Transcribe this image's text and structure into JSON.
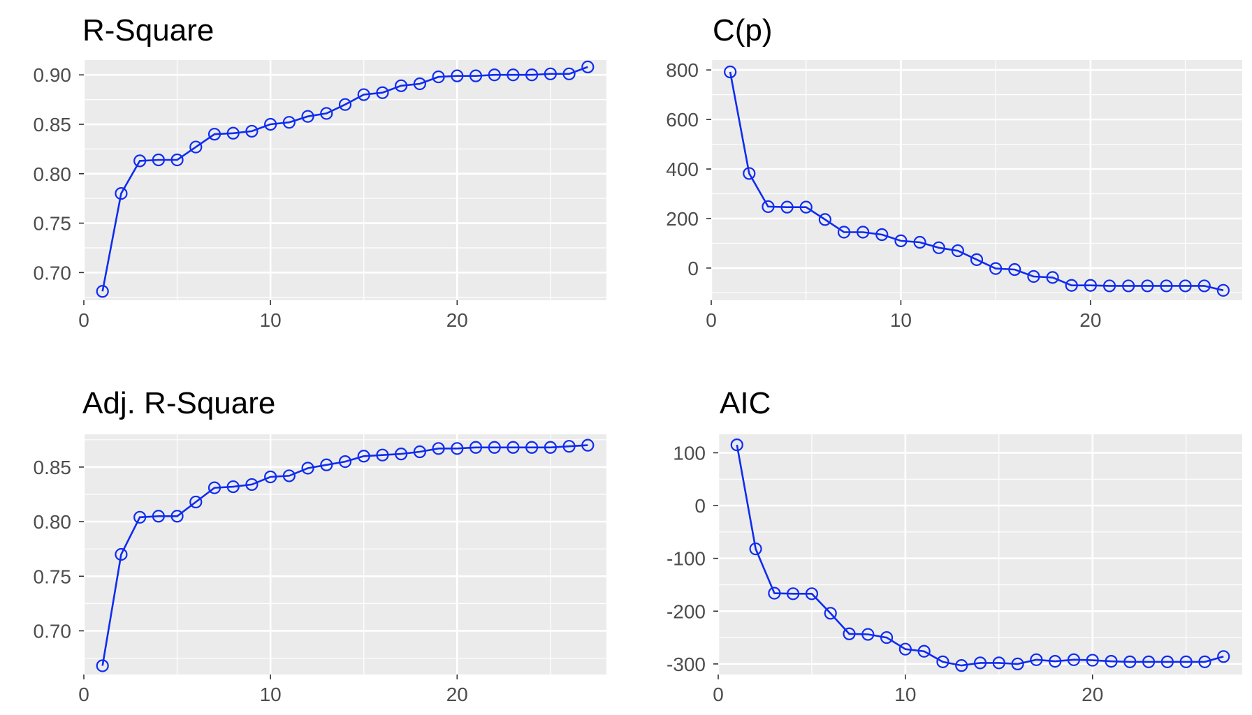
{
  "chart_data": [
    {
      "type": "line",
      "title": "R-Square",
      "x": [
        1,
        2,
        3,
        4,
        5,
        6,
        7,
        8,
        9,
        10,
        11,
        12,
        13,
        14,
        15,
        16,
        17,
        18,
        19,
        20,
        21,
        22,
        23,
        24,
        25,
        26,
        27
      ],
      "values": [
        0.681,
        0.78,
        0.813,
        0.814,
        0.814,
        0.827,
        0.84,
        0.841,
        0.843,
        0.85,
        0.852,
        0.858,
        0.861,
        0.87,
        0.88,
        0.882,
        0.889,
        0.891,
        0.898,
        0.899,
        0.899,
        0.9,
        0.9,
        0.9,
        0.901,
        0.901,
        0.908
      ],
      "xlim": [
        0,
        28
      ],
      "ylim": [
        0.672,
        0.915
      ],
      "x_ticks": [
        0,
        10,
        20
      ],
      "x_tick_labels": [
        "0",
        "10",
        "20"
      ],
      "y_ticks": [
        0.7,
        0.75,
        0.8,
        0.85,
        0.9
      ],
      "y_tick_labels": [
        "0.70",
        "0.75",
        "0.80",
        "0.85",
        "0.90"
      ],
      "grid": true,
      "color": "#0f2cf0"
    },
    {
      "type": "line",
      "title": "C(p)",
      "x": [
        1,
        2,
        3,
        4,
        5,
        6,
        7,
        8,
        9,
        10,
        11,
        12,
        13,
        14,
        15,
        16,
        17,
        18,
        19,
        20,
        21,
        22,
        23,
        24,
        25,
        26,
        27
      ],
      "values": [
        792,
        382,
        248,
        246,
        246,
        196,
        145,
        145,
        135,
        110,
        104,
        82,
        70,
        34,
        -2,
        -6,
        -34,
        -38,
        -70,
        -70,
        -72,
        -72,
        -72,
        -72,
        -72,
        -72,
        -90
      ],
      "xlim": [
        0,
        28
      ],
      "ylim": [
        -130,
        840
      ],
      "x_ticks": [
        0,
        10,
        20
      ],
      "x_tick_labels": [
        "0",
        "10",
        "20"
      ],
      "y_ticks": [
        0,
        200,
        400,
        600,
        800
      ],
      "y_tick_labels": [
        "0",
        "200",
        "400",
        "600",
        "800"
      ],
      "grid": true,
      "color": "#0f2cf0"
    },
    {
      "type": "line",
      "title": "Adj. R-Square",
      "x": [
        1,
        2,
        3,
        4,
        5,
        6,
        7,
        8,
        9,
        10,
        11,
        12,
        13,
        14,
        15,
        16,
        17,
        18,
        19,
        20,
        21,
        22,
        23,
        24,
        25,
        26,
        27
      ],
      "values": [
        0.668,
        0.77,
        0.804,
        0.805,
        0.805,
        0.818,
        0.831,
        0.832,
        0.834,
        0.841,
        0.842,
        0.849,
        0.852,
        0.855,
        0.86,
        0.861,
        0.862,
        0.864,
        0.867,
        0.867,
        0.868,
        0.868,
        0.868,
        0.868,
        0.868,
        0.869,
        0.87
      ],
      "xlim": [
        0,
        28
      ],
      "ylim": [
        0.66,
        0.88
      ],
      "x_ticks": [
        0,
        10,
        20
      ],
      "x_tick_labels": [
        "0",
        "10",
        "20"
      ],
      "y_ticks": [
        0.7,
        0.75,
        0.8,
        0.85
      ],
      "y_tick_labels": [
        "0.70",
        "0.75",
        "0.80",
        "0.85"
      ],
      "grid": true,
      "color": "#0f2cf0"
    },
    {
      "type": "line",
      "title": "AIC",
      "x": [
        1,
        2,
        3,
        4,
        5,
        6,
        7,
        8,
        9,
        10,
        11,
        12,
        13,
        14,
        15,
        16,
        17,
        18,
        19,
        20,
        21,
        22,
        23,
        24,
        25,
        26,
        27
      ],
      "values": [
        115,
        -82,
        -166,
        -167,
        -167,
        -204,
        -243,
        -244,
        -250,
        -272,
        -276,
        -296,
        -303,
        -298,
        -298,
        -300,
        -292,
        -295,
        -292,
        -293,
        -295,
        -296,
        -296,
        -296,
        -296,
        -296,
        -286
      ],
      "xlim": [
        0,
        28
      ],
      "ylim": [
        -320,
        135
      ],
      "x_ticks": [
        0,
        10,
        20
      ],
      "x_tick_labels": [
        "0",
        "10",
        "20"
      ],
      "y_ticks": [
        -300,
        -200,
        -100,
        0,
        100
      ],
      "y_tick_labels": [
        "-300",
        "-200",
        "-100",
        "0",
        "100"
      ],
      "grid": true,
      "color": "#0f2cf0"
    }
  ]
}
